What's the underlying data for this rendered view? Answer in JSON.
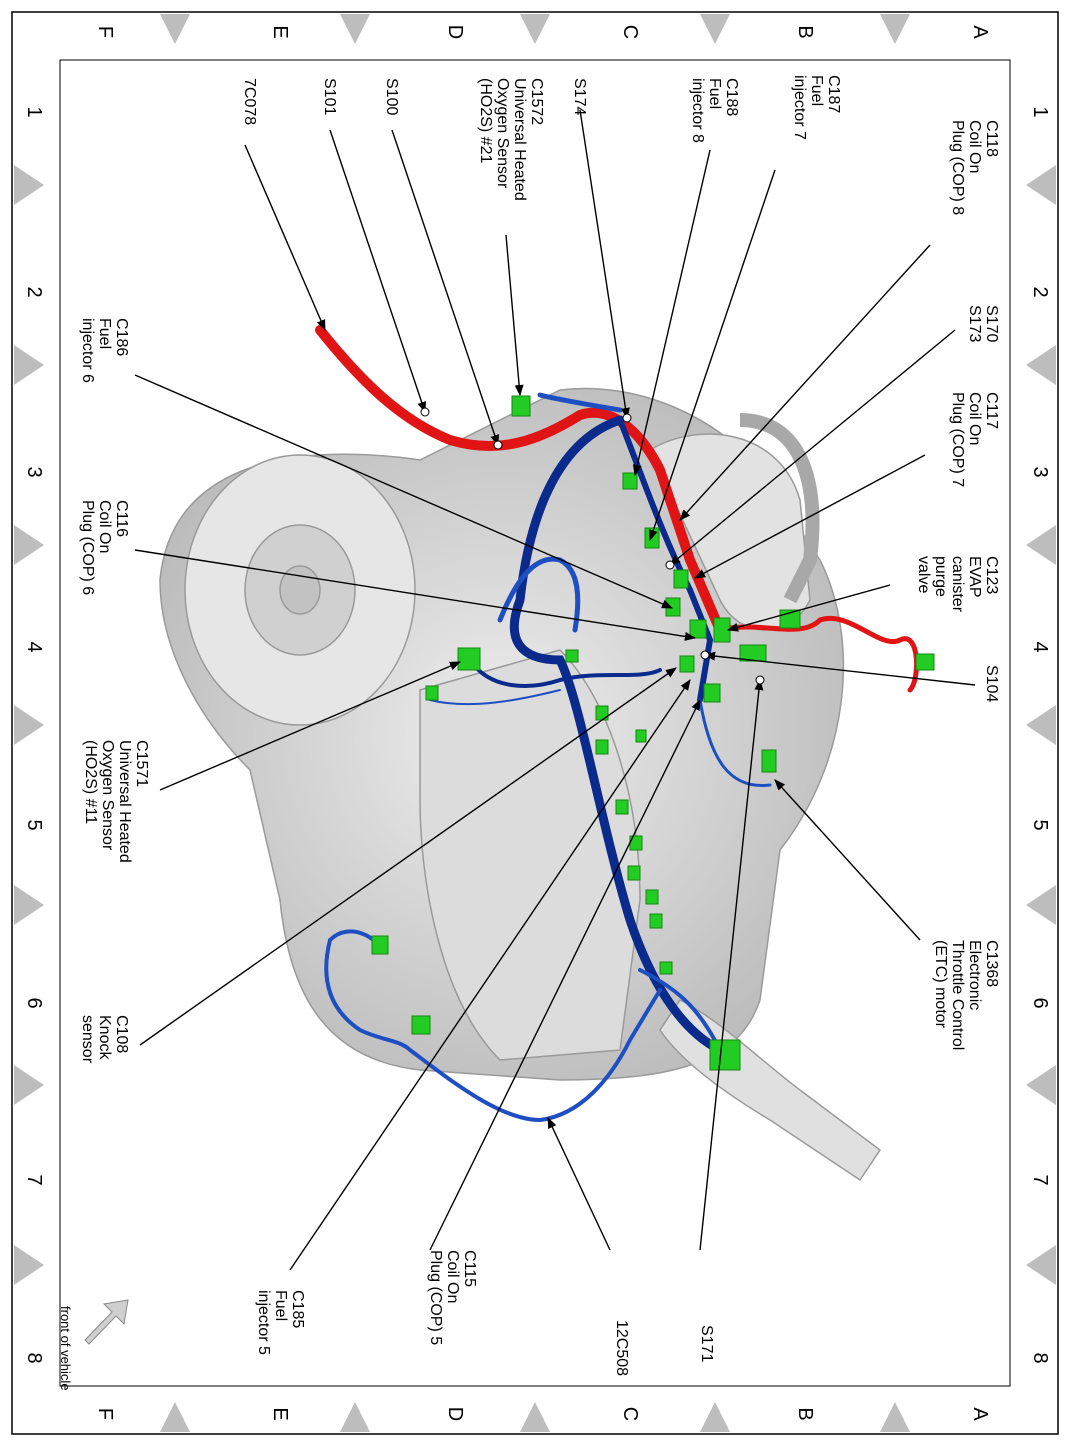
{
  "grid": {
    "rows": [
      "A",
      "B",
      "C",
      "D",
      "E",
      "F"
    ],
    "cols": [
      "1",
      "2",
      "3",
      "4",
      "5",
      "6",
      "7",
      "8"
    ]
  },
  "labels": {
    "c118": "C118\nCoil On\nPlug (COP) 8",
    "c187": "C187\nFuel\ninjector 7",
    "c188": "C188\nFuel\ninjector 8",
    "s174": "S174",
    "c1572": "C1572\nUniversal Heated\nOxygen Sensor\n(HO2S) #21",
    "s100": "S100",
    "s101": "S101",
    "w7c078": "7C078",
    "s170": "S170\nS173",
    "c117": "C117\nCoil On\nPlug (COP) 7",
    "c186": "C186\nFuel\ninjector 6",
    "c116": "C116\nCoil On\nPlug (COP) 6",
    "c123": "C123\nEVAP\ncanister\npurge\nvalve",
    "s104": "S104",
    "c1571": "C1571\nUniversal Heated\nOxygen Sensor\n(HO2S) #11",
    "c1368": "C1368\nElectronic\nThrottle Control\n(ETC) motor",
    "c108": "C108\nKnock\nsensor",
    "c115": "C115\nCoil On\nPlug (COP) 5",
    "w12c508": "12C508",
    "s171": "S171",
    "c185": "C185\nFuel\ninjector 5",
    "front": "front of vehicle"
  },
  "colors": {
    "harness_blue_dark": "#0a2a8c",
    "harness_blue": "#1e4fc2",
    "harness_red": "#e01414",
    "connector_green": "#22cc22",
    "engine_gray": "#d9d9d9",
    "border_gray": "#bdbdbd"
  }
}
